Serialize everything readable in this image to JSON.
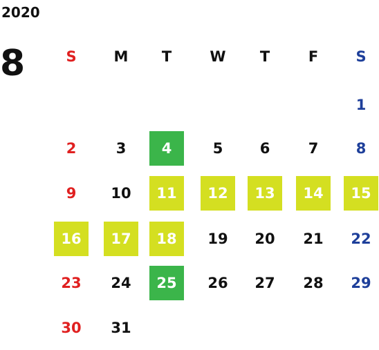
{
  "year": "2020",
  "month": "8",
  "weekdays": [
    "S",
    "M",
    "T",
    "W",
    "T",
    "F",
    "S"
  ],
  "weeks": [
    [
      null,
      null,
      null,
      null,
      null,
      null,
      "1"
    ],
    [
      "2",
      "3",
      {
        "label": "4",
        "color": "#3bb54a"
      },
      "5",
      "6",
      "7",
      "8"
    ],
    [
      "9",
      "10",
      {
        "label": "11",
        "color": "#d4df21"
      },
      {
        "label": "12",
        "color": "#d4df21"
      },
      {
        "label": "13",
        "color": "#d4df21"
      },
      {
        "label": "14",
        "color": "#d4df21"
      },
      {
        "label": "15",
        "color": "#d4df21"
      }
    ],
    [
      {
        "label": "16",
        "color": "#d4df21"
      },
      {
        "label": "17",
        "color": "#d4df21"
      },
      {
        "label": "18",
        "color": "#d4df21"
      },
      "19",
      "20",
      "21",
      "22"
    ],
    [
      "23",
      "24",
      {
        "label": "25",
        "color": "#3bb54a"
      },
      "26",
      "27",
      "28",
      "29"
    ],
    [
      "30",
      "31",
      null,
      null,
      null,
      null,
      null
    ]
  ]
}
